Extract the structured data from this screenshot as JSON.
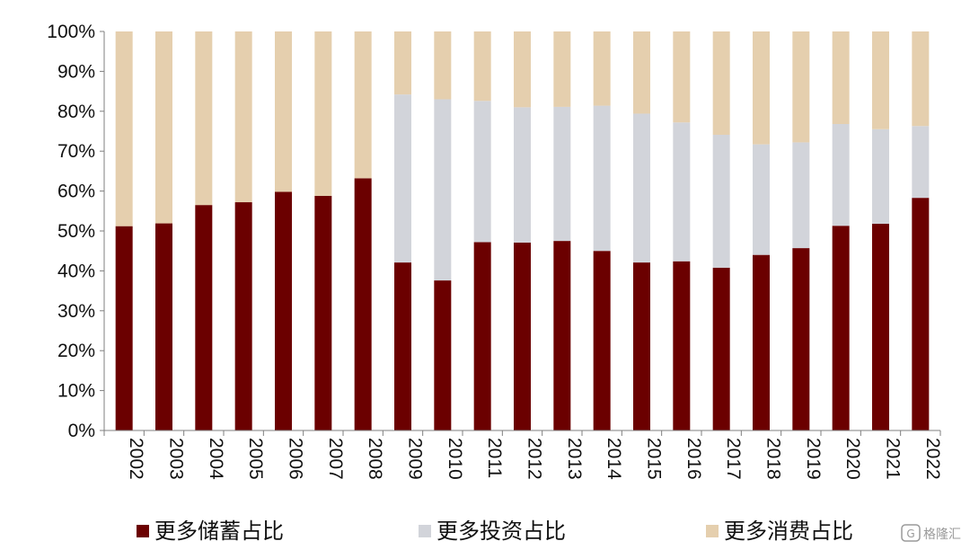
{
  "chart_data": {
    "type": "bar",
    "stacked": true,
    "categories": [
      "2002",
      "2003",
      "2004",
      "2005",
      "2006",
      "2007",
      "2008",
      "2009",
      "2010",
      "2011",
      "2012",
      "2013",
      "2014",
      "2015",
      "2016",
      "2017",
      "2018",
      "2019",
      "2020",
      "2021",
      "2022"
    ],
    "series": [
      {
        "name": "更多储蓄占比",
        "color": "#6b0000",
        "values": [
          51.2,
          51.9,
          56.5,
          57.2,
          59.8,
          58.8,
          63.2,
          42.1,
          37.6,
          47.2,
          47.1,
          47.5,
          45.0,
          42.1,
          42.4,
          40.8,
          44.0,
          45.7,
          51.3,
          51.8,
          58.3
        ]
      },
      {
        "name": "更多投资占比",
        "color": "#d2d4da",
        "values": [
          0,
          0,
          0,
          0,
          0,
          0,
          0,
          42.1,
          45.4,
          35.4,
          33.9,
          33.6,
          36.4,
          37.3,
          34.8,
          33.3,
          27.7,
          26.5,
          25.5,
          23.7,
          18.0
        ]
      },
      {
        "name": "更多消费占比",
        "color": "#e5cfae",
        "values": [
          48.8,
          48.1,
          43.5,
          42.8,
          40.2,
          41.2,
          36.8,
          15.8,
          17.0,
          17.4,
          19.0,
          18.9,
          18.6,
          20.6,
          22.8,
          25.9,
          28.3,
          27.8,
          23.2,
          24.5,
          23.7
        ]
      }
    ],
    "yticks": [
      "0%",
      "10%",
      "20%",
      "30%",
      "40%",
      "50%",
      "60%",
      "70%",
      "80%",
      "90%",
      "100%"
    ],
    "ylim": [
      0,
      100
    ],
    "title": "",
    "xlabel": "",
    "ylabel": "",
    "legend_position": "bottom",
    "grid": false
  },
  "watermark": {
    "text": "格隆汇",
    "icon": "g-logo-icon"
  }
}
